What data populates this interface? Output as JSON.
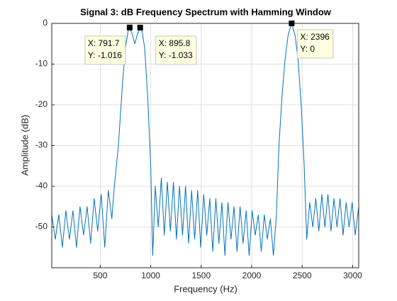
{
  "chart_data": {
    "type": "line",
    "title": "Signal 3: dB Frequency Spectrum with Hamming Window",
    "x_label": "Frequency (Hz)",
    "y_label": "Amplitude (dB)",
    "xlim": [
      20,
      3060
    ],
    "ylim": [
      -60,
      0
    ],
    "xticks": [
      500,
      1000,
      1500,
      2000,
      2500,
      3000
    ],
    "yticks": [
      0,
      -10,
      -20,
      -30,
      -40,
      -50
    ],
    "grid": true,
    "series": [
      {
        "color": "#0072bd",
        "x": [
          20,
          55,
          90,
          125,
          160,
          195,
          230,
          265,
          300,
          335,
          370,
          405,
          440,
          475,
          510,
          545,
          580,
          615,
          640,
          680,
          720,
          750,
          775,
          791.7,
          815,
          843,
          870,
          895.8,
          915,
          940,
          970,
          1000,
          1020,
          1045,
          1075,
          1105,
          1135,
          1165,
          1195,
          1225,
          1255,
          1285,
          1315,
          1345,
          1375,
          1405,
          1435,
          1465,
          1495,
          1525,
          1555,
          1585,
          1615,
          1645,
          1675,
          1705,
          1735,
          1765,
          1795,
          1825,
          1855,
          1885,
          1915,
          1945,
          1975,
          2005,
          2035,
          2065,
          2095,
          2125,
          2155,
          2185,
          2215,
          2245,
          2270,
          2300,
          2330,
          2360,
          2396,
          2430,
          2460,
          2490,
          2520,
          2545,
          2575,
          2605,
          2635,
          2665,
          2695,
          2725,
          2755,
          2785,
          2815,
          2845,
          2875,
          2905,
          2935,
          2965,
          2995,
          3025,
          3060
        ],
        "values": [
          -47,
          -53,
          -47,
          -55,
          -46,
          -53,
          -46,
          -55,
          -45,
          -52,
          -45,
          -54,
          -43,
          -51,
          -42,
          -55,
          -41,
          -48,
          -40,
          -30,
          -15,
          -6,
          -2,
          -1.016,
          -2.5,
          -5,
          -2.5,
          -1.033,
          -2,
          -6,
          -18,
          -35,
          -57,
          -40,
          -50,
          -38,
          -52,
          -39,
          -51,
          -39,
          -53,
          -40,
          -52,
          -40,
          -54,
          -41,
          -53,
          -41,
          -55,
          -42,
          -52,
          -43,
          -56,
          -43,
          -54,
          -44,
          -57,
          -44,
          -53,
          -45,
          -56,
          -45,
          -54,
          -46,
          -57,
          -46,
          -52,
          -47,
          -56,
          -47,
          -53,
          -48,
          -57,
          -47,
          -30,
          -18,
          -9,
          -3,
          0,
          -3,
          -9,
          -20,
          -35,
          -53,
          -44,
          -50,
          -43,
          -51,
          -42,
          -50,
          -42,
          -51,
          -43,
          -50,
          -43,
          -52,
          -44,
          -50,
          -44,
          -52,
          -45
        ]
      }
    ],
    "data_tips": [
      {
        "x": 791.7,
        "y": -1.016,
        "x_label": "X: 791.7",
        "y_label": "Y: -1.016"
      },
      {
        "x": 895.8,
        "y": -1.033,
        "x_label": "X: 895.8",
        "y_label": "Y: -1.033"
      },
      {
        "x": 2396,
        "y": 0,
        "x_label": "X: 2396",
        "y_label": "Y: 0"
      }
    ]
  }
}
